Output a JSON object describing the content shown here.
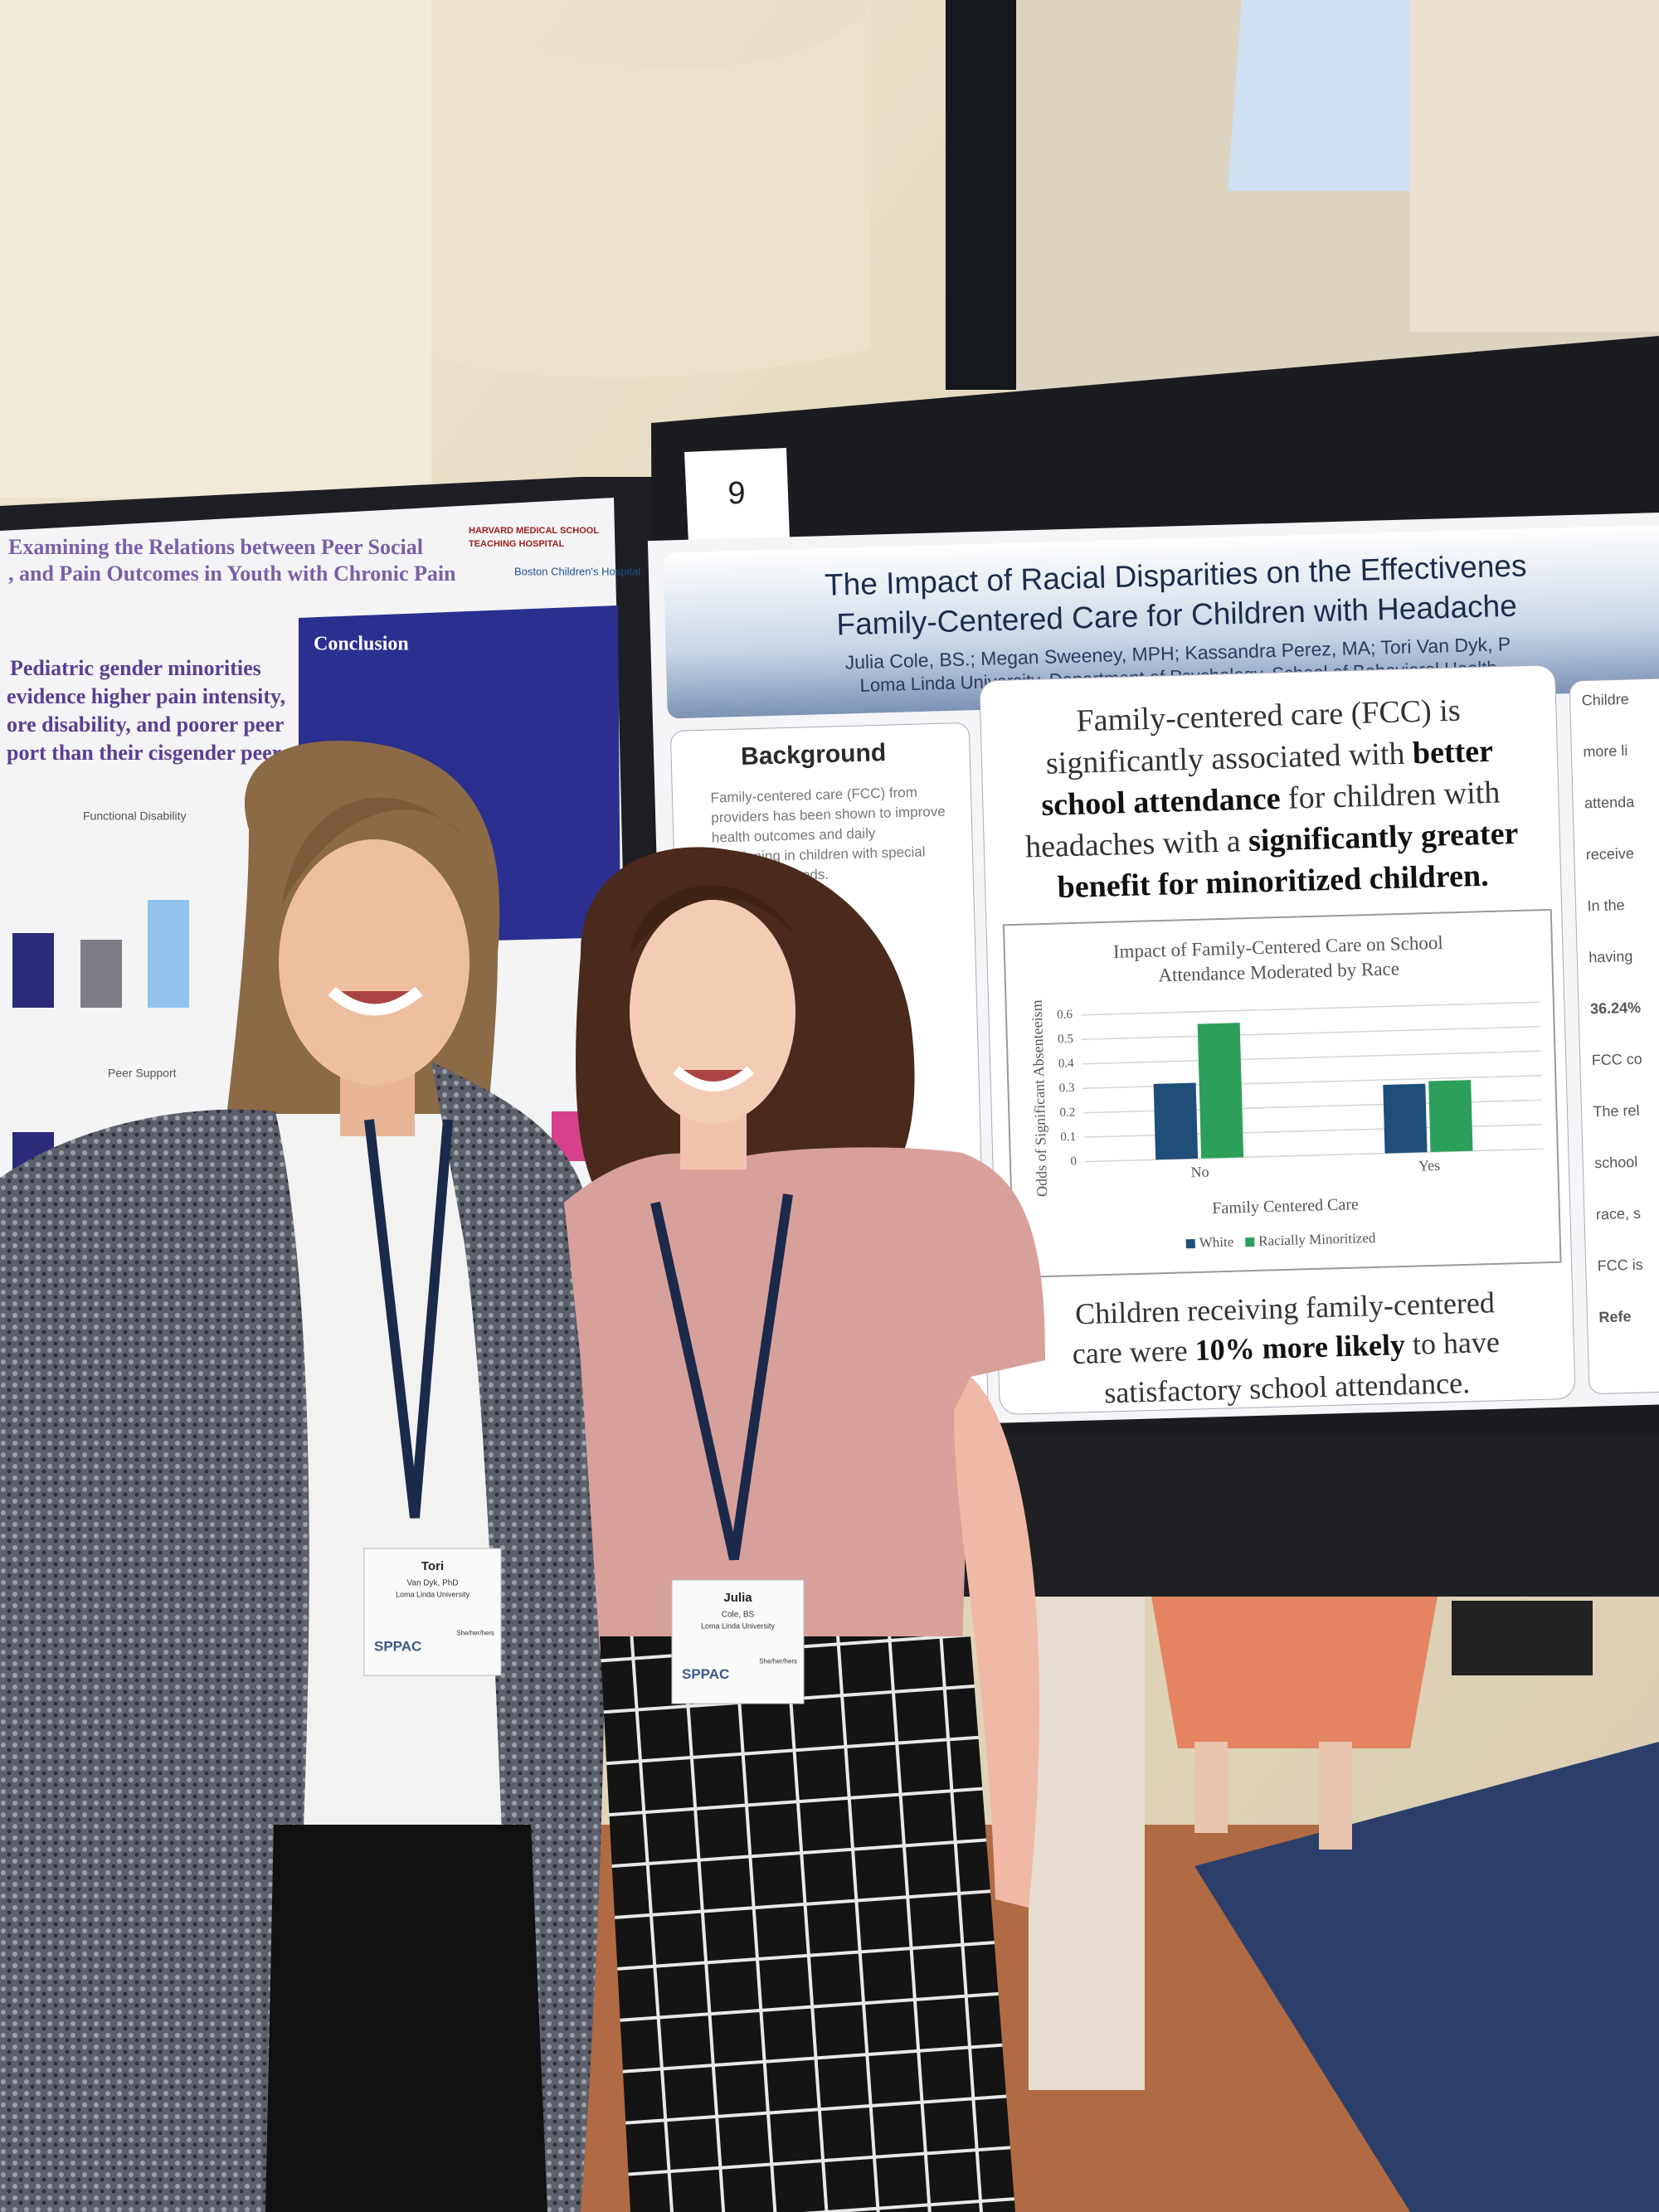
{
  "poster": {
    "number": "9",
    "title": [
      "The Impact of Racial Disparities on the Effectivenes",
      "Family-Centered Care for Children with Headache"
    ],
    "authors": "Julia Cole, BS.; Megan Sweeney, MPH; Kassandra Perez, MA; Tori Van Dyk, P",
    "affiliation": "Loma Linda University, Department of Psychology, School of Behavioral Health",
    "background": {
      "heading": "Background",
      "lines": [
        "Family-centered care (FCC) from",
        "providers has been shown to improve",
        "health outcomes and daily",
        "functioning in children with special",
        "health care needs."
      ]
    },
    "finding": {
      "line1": "Family-centered care (FCC) is",
      "line2": [
        "significantly associated with ",
        "better"
      ],
      "line3": [
        "school attendance",
        " for children with"
      ],
      "line4": [
        "headaches with a ",
        "significantly greater"
      ],
      "line5": "benefit for minoritized children."
    },
    "conclusion": {
      "line1": "Children receiving family-centered",
      "line2": [
        "care were ",
        "10% more likely",
        " to have"
      ],
      "line3": "satisfactory school attendance."
    },
    "right_column": [
      "Childre",
      "more li",
      "attenda",
      "receive",
      "In the",
      "having",
      "36.24%",
      "FCC co",
      "The rel",
      "school",
      "race, s",
      "FCC is",
      "Refe"
    ],
    "chart": {
      "type": "bar",
      "title": [
        "Impact of Family-Centered Care on School",
        "Attendance Moderated by Race"
      ],
      "x_label": "Family Centered Care",
      "y_label": "Odds of Significant Absenteeism",
      "categories": [
        "No",
        "Yes"
      ],
      "series": [
        {
          "name": "White",
          "color": "#1f4e79",
          "values": [
            0.31,
            0.28
          ]
        },
        {
          "name": "Racially Minoritized",
          "color": "#2ca05a",
          "values": [
            0.55,
            0.29
          ]
        }
      ],
      "ylim": [
        0,
        0.6
      ],
      "yticks": [
        0,
        0.1,
        0.2,
        0.3,
        0.4,
        0.5,
        0.6
      ],
      "grid": true
    }
  },
  "left_poster": {
    "title": [
      "Examining the Relations between Peer Social",
      ", and Pain Outcomes in Youth with Chronic Pain"
    ],
    "logos": [
      "HARVARD MEDICAL SCHOOL",
      "TEACHING HOSPITAL",
      "Boston Children's Hospital"
    ],
    "finding": [
      "Pediatric gender minorities",
      "evidence higher pain intensity,",
      "ore disability, and poorer peer",
      "port than their cisgender peers."
    ],
    "conclusion_heading": "Conclusion",
    "chart_titles": [
      "Functional Disability",
      "Peer Support"
    ]
  },
  "badges": [
    {
      "first": "Tori",
      "last": "Van Dyk, PhD",
      "org": "Loma Linda University",
      "logo": "SPPAC",
      "pronouns": "She/her/hers"
    },
    {
      "first": "Julia",
      "last": "Cole, BS",
      "org": "Loma Linda University",
      "logo": "SPPAC",
      "pronouns": "She/her/hers"
    }
  ]
}
